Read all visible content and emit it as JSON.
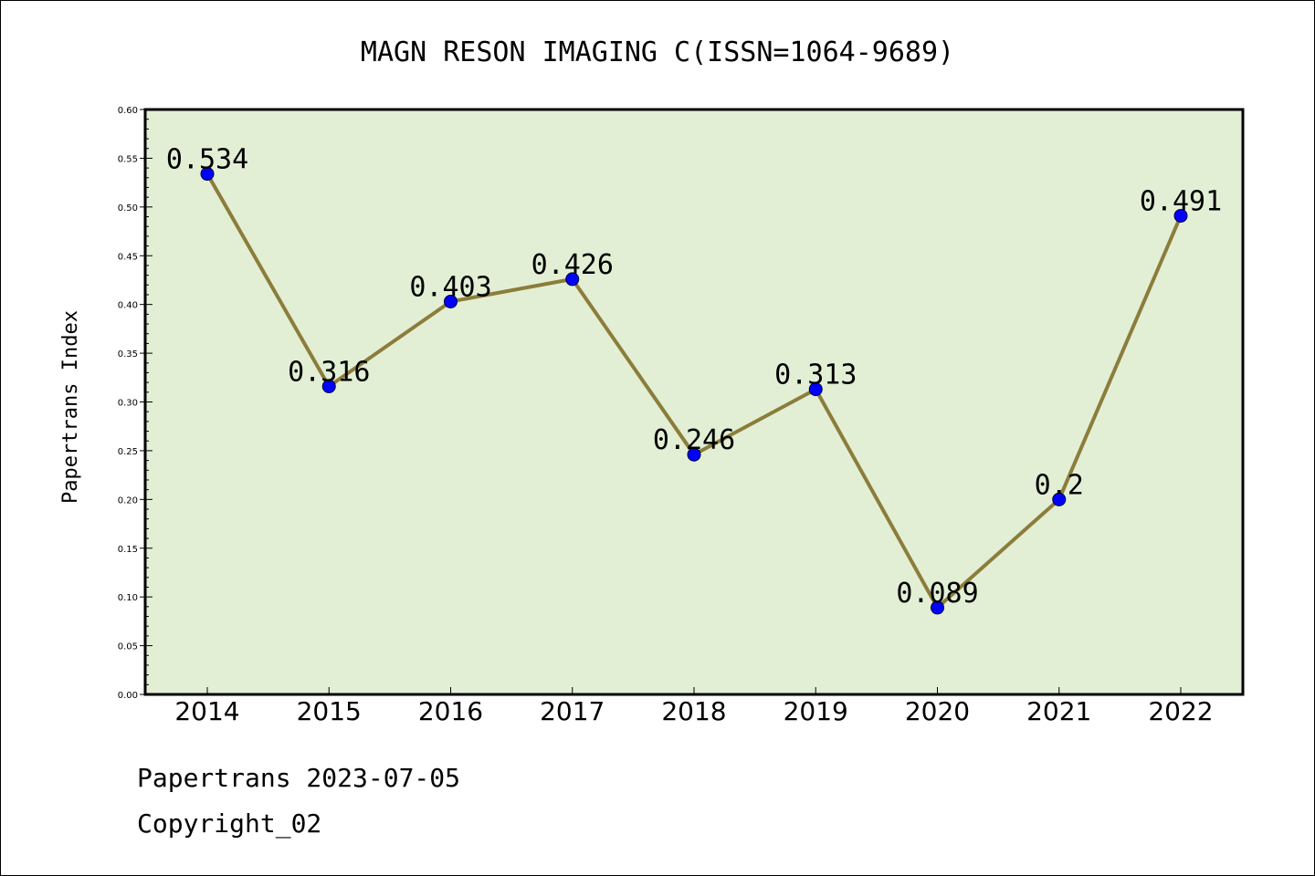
{
  "chart_data": {
    "type": "line",
    "title": "MAGN RESON IMAGING C(ISSN=1064-9689)",
    "xlabel": "",
    "ylabel": "Papertrans Index",
    "categories": [
      "2014",
      "2015",
      "2016",
      "2017",
      "2018",
      "2019",
      "2020",
      "2021",
      "2022"
    ],
    "values": [
      0.534,
      0.316,
      0.403,
      0.426,
      0.246,
      0.313,
      0.089,
      0.2,
      0.491
    ],
    "data_labels": [
      "0.534",
      "0.316",
      "0.403",
      "0.426",
      "0.246",
      "0.313",
      "0.089",
      "0.2",
      "0.491"
    ],
    "ylim": [
      0,
      0.6
    ],
    "yticks": [
      "0.00",
      "0.05",
      "0.10",
      "0.15",
      "0.20",
      "0.25",
      "0.30",
      "0.35",
      "0.40",
      "0.45",
      "0.50",
      "0.55",
      "0.60"
    ],
    "grid": false,
    "colors": {
      "plot_background": "#e2efd5",
      "line": "#8b7d3a",
      "marker": "#0000ff"
    }
  },
  "footer": {
    "date_line": "Papertrans 2023-07-05",
    "copyright": "Copyright_02"
  }
}
